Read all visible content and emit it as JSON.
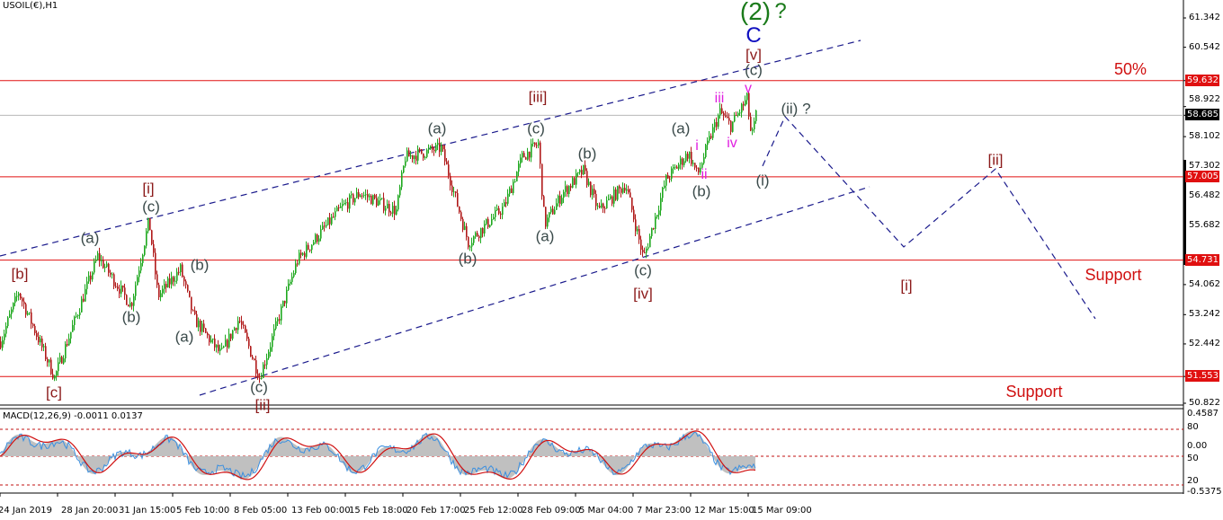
{
  "header": {
    "title": "USOIL(€),H1"
  },
  "chart_data": {
    "type": "candlestick",
    "symbol": "USOIL(€)",
    "timeframe": "H1",
    "ylim": [
      50.822,
      61.342
    ],
    "y_ticks": [
      "61.342",
      "60.542",
      "59.632",
      "58.922",
      "58.685",
      "58.102",
      "57.302",
      "57.005",
      "56.482",
      "55.682",
      "54.731",
      "54.062",
      "53.242",
      "52.442",
      "51.553",
      "50.822"
    ],
    "x_ticks": [
      "24 Jan 2019",
      "28 Jan 20:00",
      "31 Jan 15:00",
      "5 Feb 10:00",
      "8 Feb 05:00",
      "13 Feb 00:00",
      "15 Feb 18:00",
      "20 Feb 17:00",
      "25 Feb 12:00",
      "28 Feb 09:00",
      "5 Mar 04:00",
      "7 Mar 23:00",
      "12 Mar 15:00",
      "15 Mar 09:00"
    ],
    "swing_prices": [
      52.51,
      53.86,
      51.53,
      54.84,
      53.49,
      55.82,
      53.74,
      54.48,
      53.13,
      52.15,
      53.13,
      51.53,
      54.72,
      56.19,
      56.56,
      56.07,
      57.54,
      57.79,
      55.21,
      56.19,
      57.54,
      57.91,
      55.7,
      56.56,
      57.17,
      56.07,
      56.81,
      54.77,
      56.93,
      57.66,
      57.05,
      58.15,
      58.77,
      58.4,
      59.13,
      58.03,
      58.685
    ],
    "current_price": "58.685",
    "levels": [
      {
        "price": "59.632",
        "color": "#e01010"
      },
      {
        "price": "57.005",
        "color": "#e01010"
      },
      {
        "price": "54.731",
        "color": "#e01010"
      },
      {
        "price": "51.553",
        "color": "#e01010"
      }
    ],
    "projection_prices": [
      57.3,
      58.65,
      55.09,
      57.22,
      53.13
    ],
    "wave_labels": [
      "(2)",
      "?",
      "C",
      "[v]",
      "(c)",
      "50%",
      "v",
      "iii",
      "iv",
      "i",
      "ii",
      "(a)",
      "(b)",
      "(ii) ?",
      "(i)",
      "[ii]",
      "[i]",
      "Support",
      "Support",
      "[iii]",
      "(c)",
      "(a)",
      "(b)",
      "(a)",
      "(b)",
      "(c)",
      "[iv]",
      "[i]",
      "(c)",
      "(a)",
      "(b)",
      "(b)",
      "(a)",
      "[b]",
      "[c]",
      "(c)",
      "[ii]"
    ],
    "macd": {
      "label": "MACD(12,26,9) -0.0011 0.0137",
      "axis_labels": [
        "0.4587",
        "80",
        "0.00",
        "50",
        "20",
        "-0.5375"
      ]
    },
    "colors": {
      "up": "#1fa81f",
      "down": "#b01a1a",
      "channel": "#1a1a8c",
      "macd_hist": "#c0c0c0",
      "macd_signal": "#d01010",
      "macd_line": "#3a8fe0"
    }
  }
}
